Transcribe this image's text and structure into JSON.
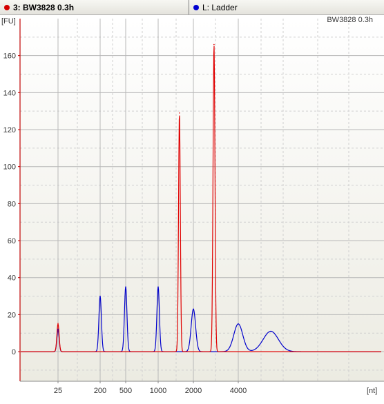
{
  "tabs": [
    {
      "label": "3: BW3828 0.3h",
      "color": "#d40000",
      "active": true
    },
    {
      "label": "L: Ladder",
      "color": "#0000d0",
      "active": false
    }
  ],
  "colors": {
    "sample": "#e00000",
    "ladder": "#0000cc",
    "axis": "#c00000",
    "grid": "#c8c8c8",
    "background_top": "#ffffff",
    "background_bottom": "#ecebe2"
  },
  "chart_data": {
    "type": "line",
    "title": "BW3828 0.3h",
    "ylabel": "[FU]",
    "xlabel": "[nt]",
    "ylim": [
      -16,
      180
    ],
    "yticks": [
      0,
      20,
      40,
      60,
      80,
      100,
      120,
      140,
      160
    ],
    "xscale": "log",
    "xticks": [
      25,
      200,
      500,
      1000,
      2000,
      4000
    ],
    "grid": true,
    "series": [
      {
        "name": "3: BW3828 0.3h",
        "color": "#e00000",
        "baseline_note": "flat near 0 apart from peaks",
        "peaks": [
          {
            "x": 25,
            "y": 15
          },
          {
            "x": 1520,
            "y": 129
          },
          {
            "x": 2750,
            "y": 166
          }
        ]
      },
      {
        "name": "L: Ladder",
        "color": "#0000cc",
        "peaks": [
          {
            "x": 25,
            "y": 12
          },
          {
            "x": 200,
            "y": 30
          },
          {
            "x": 500,
            "y": 35
          },
          {
            "x": 1000,
            "y": 35
          },
          {
            "x": 2000,
            "y": 23
          },
          {
            "x": 4000,
            "y": 15
          },
          {
            "x": 6000,
            "y": 11
          }
        ]
      }
    ]
  }
}
